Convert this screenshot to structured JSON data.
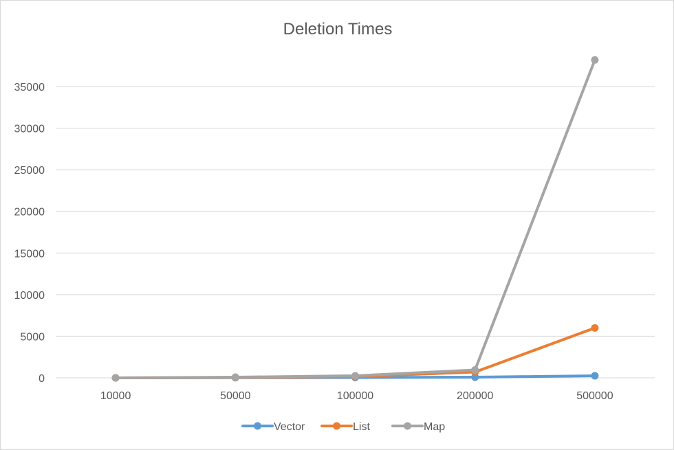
{
  "chart_data": {
    "type": "line",
    "title": "Deletion Times",
    "categories": [
      "10000",
      "50000",
      "100000",
      "200000",
      "500000"
    ],
    "yticks": [
      "0",
      "5000",
      "10000",
      "15000",
      "20000",
      "25000",
      "30000",
      "35000"
    ],
    "ylim": [
      0,
      35000
    ],
    "grid": true,
    "legend_position": "bottom",
    "series": [
      {
        "name": "Vector",
        "color": "#5b9bd5",
        "values": [
          0,
          20,
          40,
          80,
          250
        ]
      },
      {
        "name": "List",
        "color": "#ed7d31",
        "values": [
          0,
          50,
          150,
          700,
          6000
        ]
      },
      {
        "name": "Map",
        "color": "#a5a5a5",
        "values": [
          0,
          80,
          250,
          950,
          38200
        ]
      }
    ]
  }
}
